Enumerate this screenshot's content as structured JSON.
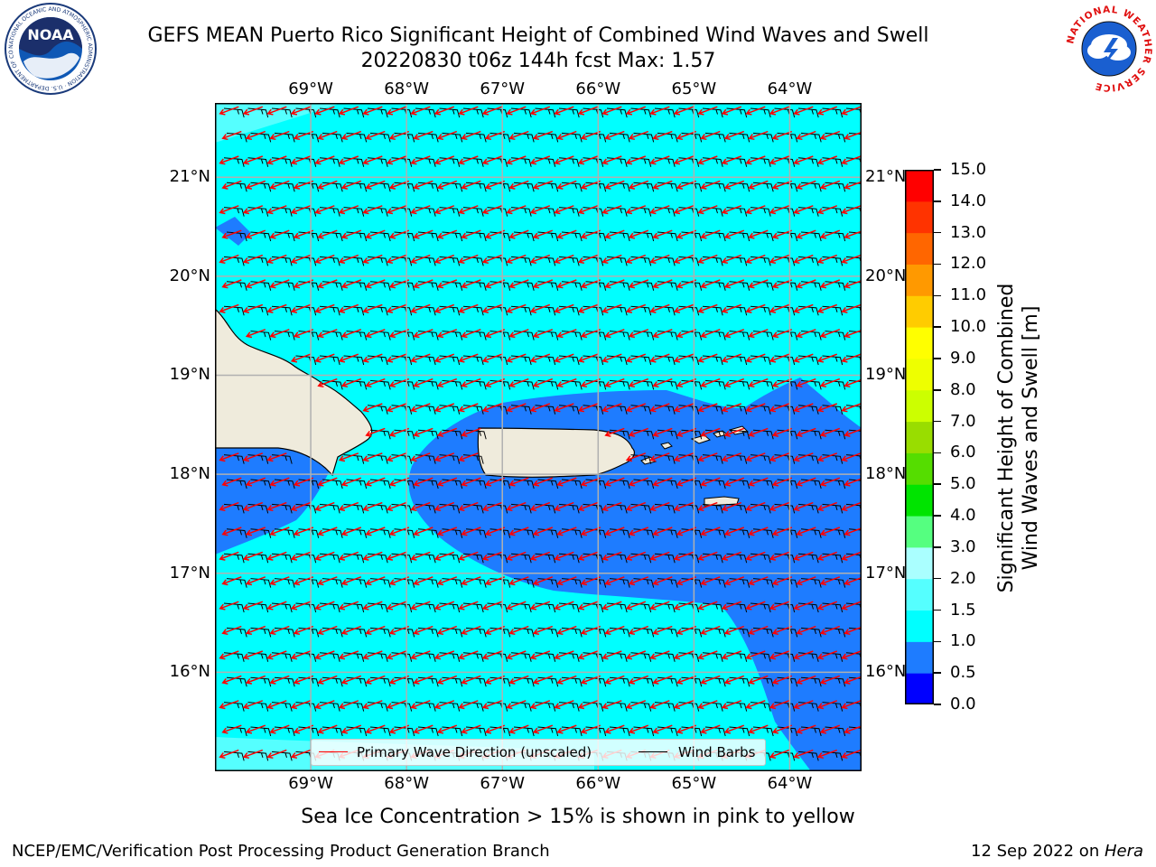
{
  "title": {
    "line1": "GEFS MEAN Puerto Rico Significant Height of Combined Wind Waves and Swell",
    "line2": "20220830 t06z 144h fcst   Max: 1.57"
  },
  "logos": {
    "noaa_text": "NOAA",
    "noaa_ring": "NATIONAL OCEANIC AND ATMOSPHERIC ADMINISTRATION · U.S. DEPARTMENT OF COMMERCE",
    "nws_ring": "NATIONAL WEATHER SERVICE"
  },
  "map": {
    "lon_labels": [
      "69°W",
      "68°W",
      "67°W",
      "66°W",
      "65°W",
      "64°W"
    ],
    "lat_labels": [
      "21°N",
      "20°N",
      "19°N",
      "18°N",
      "17°N",
      "16°N"
    ],
    "lon_range": [
      -70.0,
      -63.25
    ],
    "lat_range": [
      15.0,
      21.75
    ],
    "colors": {
      "land": "#efebdc",
      "band_0_5_1_0": "#1e7cff",
      "band_1_0_1_5": "#00ffff",
      "band_1_5_2_0": "#55ffff",
      "wave_arrow": "#ff0000",
      "wind_barb": "#000000",
      "grid": "#b0b0b0"
    },
    "wave_direction_toward_deg": 250,
    "wind_direction_from_deg": 95
  },
  "legend": {
    "wave_label": "Primary Wave Direction (unscaled)",
    "wind_label": "Wind Barbs"
  },
  "colorbar": {
    "label_line1": "Significant Height of Combined",
    "label_line2": "Wind Waves and Swell [m]",
    "ticks": [
      "0.0",
      "0.5",
      "1.0",
      "1.5",
      "2.0",
      "3.0",
      "4.0",
      "5.0",
      "6.0",
      "7.0",
      "8.0",
      "9.0",
      "10.0",
      "11.0",
      "12.0",
      "13.0",
      "14.0",
      "15.0"
    ],
    "colors": [
      "#0000ff",
      "#1e7cff",
      "#00ffff",
      "#55ffff",
      "#aaffff",
      "#55ff80",
      "#00e400",
      "#55dd00",
      "#99dd00",
      "#ccff00",
      "#eeff00",
      "#ffff00",
      "#ffcc00",
      "#ff9900",
      "#ff6600",
      "#ff3300",
      "#ff0000"
    ]
  },
  "note": "Sea Ice Concentration > 15% is shown in pink to yellow",
  "footer": {
    "left": "NCEP/EMC/Verification Post Processing Product Generation Branch",
    "right_prefix": "12 Sep 2022 on ",
    "right_host": "Hera"
  }
}
